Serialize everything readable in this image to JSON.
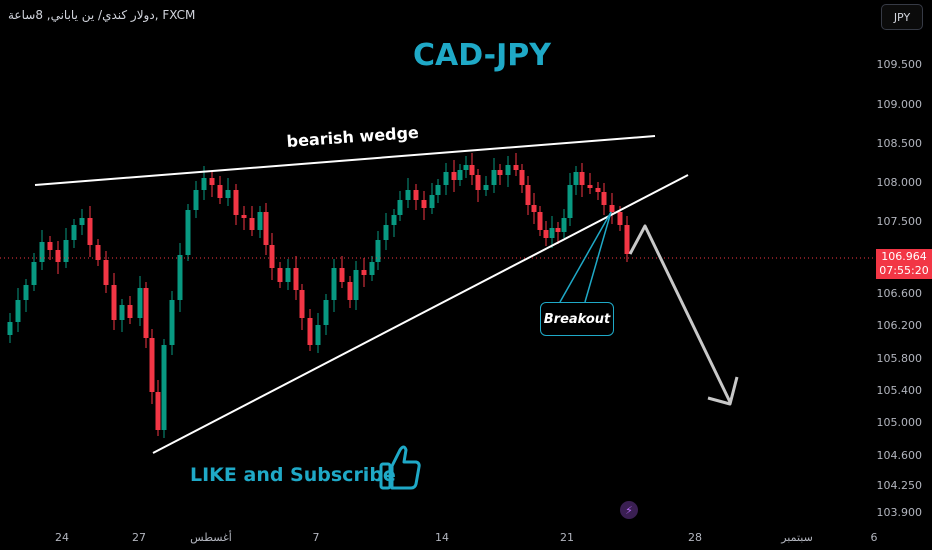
{
  "header": {
    "symbol": "دولار كندي/ ين ياباني, 8ساعة, FXCM",
    "currency_button": "JPY"
  },
  "annotations": {
    "title": "CAD-JPY",
    "wedge_label": "bearish wedge",
    "breakout_label": "Breakout",
    "cta": "LIKE and Subscribe"
  },
  "price_scale": {
    "labels": [
      "109.500",
      "109.000",
      "108.500",
      "108.000",
      "107.500",
      "106.600",
      "106.200",
      "105.800",
      "105.400",
      "105.000",
      "104.600",
      "104.250",
      "103.900"
    ],
    "current_price": "106.964",
    "countdown": "07:55:20"
  },
  "time_scale": {
    "labels": [
      "24",
      "27",
      "أغسطس",
      "7",
      "14",
      "21",
      "28",
      "سبتمبر",
      "6"
    ]
  },
  "colors": {
    "up": "#089981",
    "down": "#f23645",
    "accent": "#1fa9c7",
    "background": "#000000"
  },
  "icons": [
    "thumbs-up-icon",
    "lightning-icon"
  ],
  "chart_data": {
    "type": "candlestick",
    "title": "CAD-JPY",
    "trend": "rising wedge followed by breakdown",
    "last_price": 106.964
  }
}
